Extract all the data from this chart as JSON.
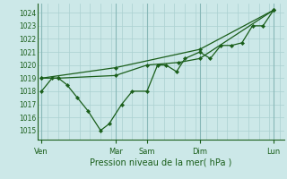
{
  "bg_color": "#cce8e8",
  "grid_color": "#aad0d0",
  "line_color": "#1a5e1a",
  "marker_color": "#1a5e1a",
  "ylabel_ticks": [
    1015,
    1016,
    1017,
    1018,
    1019,
    1020,
    1021,
    1022,
    1023,
    1024
  ],
  "ylim": [
    1014.3,
    1024.7
  ],
  "xlabel": "Pression niveau de la mer( hPa )",
  "xtick_labels": [
    "Ven",
    "Mar",
    "Sam",
    "Dim",
    "Lun"
  ],
  "xtick_positions": [
    0,
    3.5,
    5.0,
    7.5,
    11.0
  ],
  "day_vlines": [
    0,
    3.5,
    5.0,
    7.5,
    11.0
  ],
  "xlim": [
    -0.2,
    11.5
  ],
  "series1_x": [
    0.0,
    0.5,
    0.8,
    1.2,
    1.7,
    2.2,
    2.8,
    3.2,
    3.8,
    4.3,
    5.0,
    5.5,
    5.9,
    6.4,
    6.8,
    7.5,
    8.0,
    8.5,
    9.0,
    9.5,
    10.0,
    10.5,
    11.0
  ],
  "series1_y": [
    1018.0,
    1019.0,
    1019.0,
    1018.5,
    1017.5,
    1016.5,
    1015.0,
    1015.5,
    1017.0,
    1018.0,
    1018.0,
    1020.0,
    1020.0,
    1019.5,
    1020.5,
    1021.0,
    1020.5,
    1021.5,
    1021.5,
    1021.7,
    1023.0,
    1023.0,
    1024.2
  ],
  "series2_x": [
    0.0,
    0.8,
    3.5,
    5.0,
    6.5,
    7.5,
    11.0
  ],
  "series2_y": [
    1019.0,
    1019.0,
    1019.2,
    1020.0,
    1020.2,
    1020.5,
    1024.2
  ],
  "series3_x": [
    0.0,
    3.5,
    7.5,
    11.0
  ],
  "series3_y": [
    1019.0,
    1019.8,
    1021.2,
    1024.2
  ]
}
